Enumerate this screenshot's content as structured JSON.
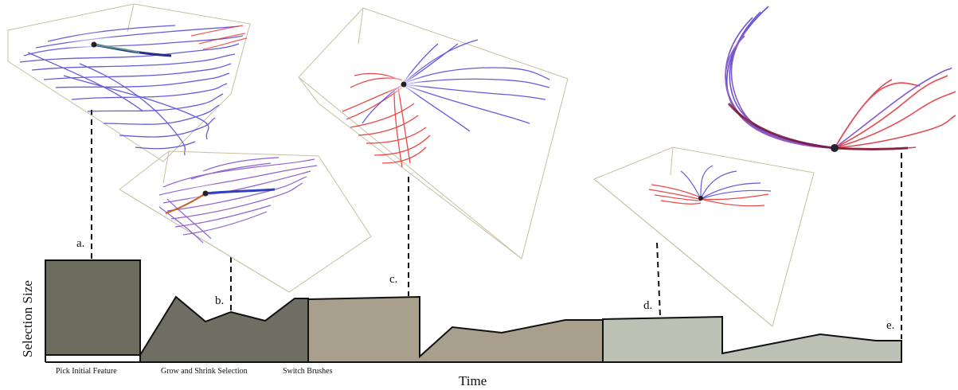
{
  "axes": {
    "x_label": "Time",
    "y_label": "Selection Size"
  },
  "stages": [
    {
      "label": "Pick Initial Feature"
    },
    {
      "label": "Grow and Shrink Selection"
    },
    {
      "label": "Switch Brushes"
    }
  ],
  "events": [
    {
      "label": "a."
    },
    {
      "label": "b."
    },
    {
      "label": "c."
    },
    {
      "label": "d."
    },
    {
      "label": "e."
    }
  ],
  "colors": {
    "phase_1": "#6c6c5f",
    "phase_2": "#6e6e62",
    "phase_3": "#a89f8c",
    "phase_4": "#bcc0b5",
    "stroke": "#111111",
    "fiber_blue": "#4a3fd8",
    "fiber_red": "#e83535",
    "fiber_purple": "#7a48c8",
    "box_edge": "#c8c0a0"
  }
}
